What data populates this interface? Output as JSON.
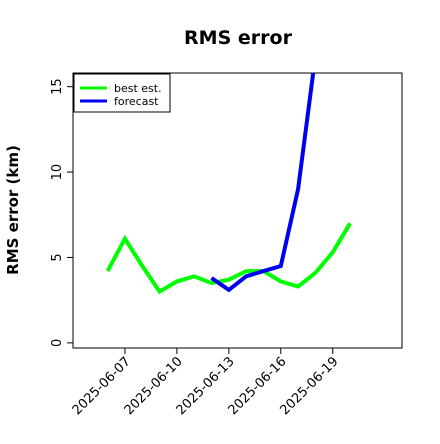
{
  "chart_data": {
    "type": "line",
    "title": "RMS error",
    "xlabel": "",
    "ylabel": "RMS error (km)",
    "x_ticks": [
      "2025-06-07",
      "2025-06-10",
      "2025-06-13",
      "2025-06-16",
      "2025-06-19"
    ],
    "x_tick_values": [
      7,
      10,
      13,
      16,
      19
    ],
    "xlim": [
      4,
      23
    ],
    "y_ticks": [
      "0",
      "5",
      "10",
      "15"
    ],
    "y_tick_values": [
      0,
      5,
      10,
      15
    ],
    "ylim": [
      -0.3,
      15.8
    ],
    "grid": false,
    "legend_position": "top-left",
    "series": [
      {
        "name": "best est.",
        "color": "#00ff00",
        "x": [
          6,
          7,
          8,
          9,
          10,
          11,
          12,
          13,
          14,
          15,
          16,
          17,
          18,
          19,
          20
        ],
        "y": [
          4.2,
          6.1,
          4.5,
          3.0,
          3.6,
          3.9,
          3.5,
          3.7,
          4.2,
          4.2,
          3.6,
          3.3,
          4.1,
          5.3,
          7.0
        ]
      },
      {
        "name": "forecast",
        "color": "#0000ee",
        "x": [
          12,
          13,
          14,
          15,
          16,
          17,
          17.87
        ],
        "y": [
          3.8,
          3.1,
          3.9,
          4.2,
          4.5,
          9.0,
          15.8
        ]
      }
    ]
  }
}
